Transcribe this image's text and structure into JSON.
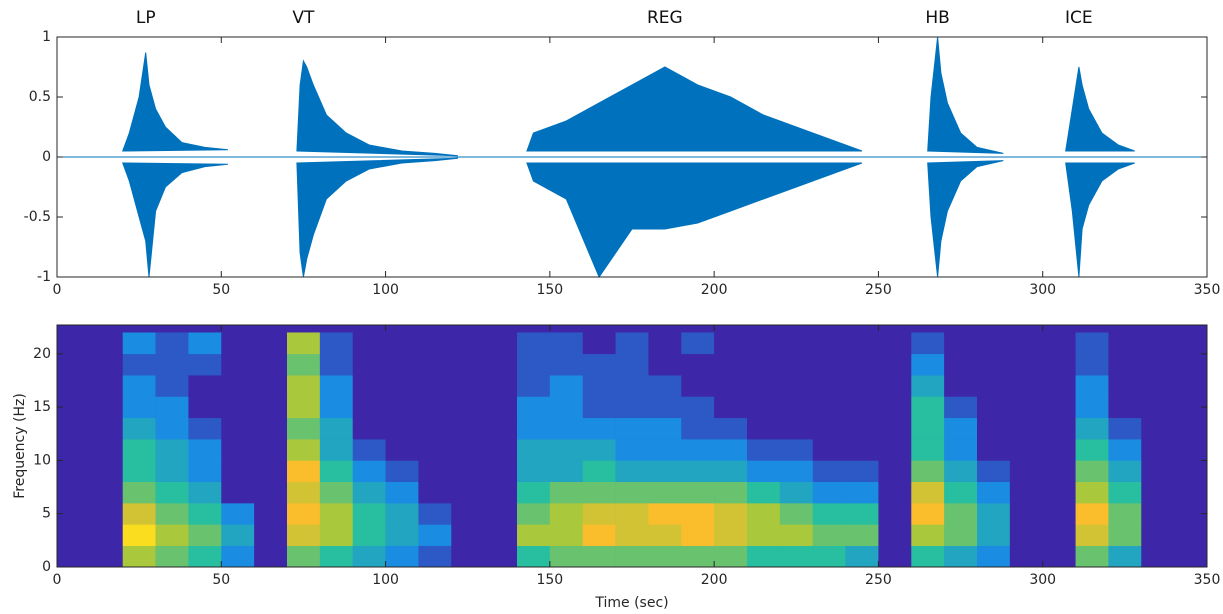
{
  "chart_data": [
    {
      "type": "envelope",
      "color": "#0072bd",
      "xlim": [
        0,
        350
      ],
      "ylim": [
        -1,
        1
      ],
      "xticks": [
        0,
        50,
        100,
        150,
        200,
        250,
        300,
        350
      ],
      "yticks": [
        -1,
        -0.5,
        0,
        0.5,
        1
      ],
      "events": [
        {
          "label": "LP",
          "x": [
            20,
            22,
            25,
            27,
            28,
            30,
            33,
            38,
            45,
            52
          ],
          "upper": [
            0.05,
            0.2,
            0.5,
            0.87,
            0.6,
            0.4,
            0.25,
            0.12,
            0.08,
            0.06
          ],
          "lower": [
            -0.05,
            -0.2,
            -0.5,
            -0.7,
            -1,
            -0.45,
            -0.25,
            -0.13,
            -0.08,
            -0.06
          ]
        },
        {
          "label": "VT",
          "x": [
            73,
            74,
            75,
            76,
            78,
            82,
            88,
            95,
            105,
            115,
            122
          ],
          "upper": [
            0.05,
            0.6,
            0.8,
            0.75,
            0.6,
            0.35,
            0.2,
            0.1,
            0.05,
            0.03,
            0.01
          ],
          "lower": [
            -0.05,
            -0.8,
            -1,
            -0.85,
            -0.65,
            -0.35,
            -0.2,
            -0.1,
            -0.05,
            -0.03,
            -0.01
          ]
        },
        {
          "label": "REG",
          "x": [
            143,
            145,
            155,
            165,
            175,
            185,
            195,
            205,
            215,
            225,
            235,
            245
          ],
          "upper": [
            0.05,
            0.2,
            0.3,
            0.45,
            0.6,
            0.75,
            0.6,
            0.5,
            0.35,
            0.25,
            0.15,
            0.05
          ],
          "lower": [
            -0.05,
            -0.2,
            -0.35,
            -1,
            -0.6,
            -0.6,
            -0.55,
            -0.45,
            -0.35,
            -0.25,
            -0.15,
            -0.05
          ]
        },
        {
          "label": "HB",
          "x": [
            265,
            266,
            268,
            269,
            271,
            275,
            280,
            288
          ],
          "upper": [
            0.05,
            0.5,
            1,
            0.7,
            0.45,
            0.2,
            0.08,
            0.03
          ],
          "lower": [
            -0.05,
            -0.5,
            -1,
            -0.7,
            -0.45,
            -0.2,
            -0.08,
            -0.03
          ]
        },
        {
          "label": "ICE",
          "x": [
            307,
            309,
            311,
            312,
            314,
            318,
            323,
            328
          ],
          "upper": [
            0.05,
            0.4,
            0.75,
            0.6,
            0.4,
            0.2,
            0.1,
            0.05
          ],
          "lower": [
            -0.05,
            -0.45,
            -1,
            -0.6,
            -0.4,
            -0.2,
            -0.1,
            -0.05
          ]
        }
      ]
    },
    {
      "type": "heatmap",
      "x_label": "Time (sec)",
      "y_label": "Frequency (Hz)",
      "xlim": [
        0,
        350
      ],
      "ylim": [
        0,
        22.7
      ],
      "xticks": [
        0,
        50,
        100,
        150,
        200,
        250,
        300,
        350
      ],
      "yticks": [
        0,
        5,
        10,
        15,
        20
      ],
      "colormap": [
        "#3e26a8",
        "#1a8ce1",
        "#28bea0",
        "#aac83c",
        "#fabe2d",
        "#f9fb0e"
      ],
      "xbins": [
        0,
        10,
        20,
        30,
        40,
        50,
        60,
        70,
        80,
        90,
        100,
        110,
        120,
        130,
        140,
        150,
        160,
        170,
        180,
        190,
        200,
        210,
        220,
        230,
        240,
        250,
        260,
        270,
        280,
        290,
        300,
        310,
        320,
        330,
        340,
        350
      ],
      "ybins": [
        0,
        2,
        4,
        6,
        8,
        10,
        12,
        14,
        16,
        18,
        20,
        22
      ],
      "z": [
        [
          0,
          0,
          0.6,
          0.5,
          0.4,
          0.2,
          0,
          0.5,
          0.4,
          0.3,
          0.2,
          0.1,
          0,
          0,
          0.4,
          0.5,
          0.5,
          0.5,
          0.5,
          0.5,
          0.5,
          0.4,
          0.4,
          0.4,
          0.3,
          0,
          0.4,
          0.3,
          0.2,
          0,
          0,
          0.5,
          0.3,
          0,
          0
        ],
        [
          0,
          0,
          0.9,
          0.6,
          0.5,
          0.3,
          0,
          0.7,
          0.6,
          0.4,
          0.3,
          0.2,
          0,
          0,
          0.6,
          0.6,
          0.8,
          0.7,
          0.7,
          0.8,
          0.7,
          0.6,
          0.6,
          0.5,
          0.5,
          0,
          0.6,
          0.5,
          0.3,
          0,
          0,
          0.7,
          0.5,
          0,
          0
        ],
        [
          0,
          0,
          0.7,
          0.5,
          0.4,
          0.2,
          0,
          0.8,
          0.6,
          0.4,
          0.3,
          0.1,
          0,
          0,
          0.5,
          0.6,
          0.7,
          0.7,
          0.8,
          0.8,
          0.7,
          0.6,
          0.5,
          0.4,
          0.4,
          0,
          0.8,
          0.5,
          0.3,
          0,
          0,
          0.8,
          0.5,
          0,
          0
        ],
        [
          0,
          0,
          0.5,
          0.4,
          0.3,
          0,
          0,
          0.7,
          0.5,
          0.3,
          0.2,
          0,
          0,
          0,
          0.4,
          0.5,
          0.5,
          0.5,
          0.5,
          0.5,
          0.5,
          0.4,
          0.3,
          0.2,
          0.2,
          0,
          0.7,
          0.4,
          0.2,
          0,
          0,
          0.6,
          0.4,
          0,
          0
        ],
        [
          0,
          0,
          0.4,
          0.3,
          0.2,
          0,
          0,
          0.8,
          0.4,
          0.2,
          0.1,
          0,
          0,
          0,
          0.3,
          0.3,
          0.4,
          0.3,
          0.3,
          0.3,
          0.3,
          0.2,
          0.2,
          0.1,
          0.1,
          0,
          0.5,
          0.3,
          0.1,
          0,
          0,
          0.5,
          0.3,
          0,
          0
        ],
        [
          0,
          0,
          0.4,
          0.3,
          0.2,
          0,
          0,
          0.6,
          0.3,
          0.1,
          0,
          0,
          0,
          0,
          0.3,
          0.3,
          0.3,
          0.2,
          0.2,
          0.2,
          0.2,
          0.1,
          0.1,
          0,
          0,
          0,
          0.4,
          0.2,
          0,
          0,
          0,
          0.4,
          0.2,
          0,
          0
        ],
        [
          0,
          0,
          0.3,
          0.2,
          0.1,
          0,
          0,
          0.5,
          0.3,
          0,
          0,
          0,
          0,
          0,
          0.2,
          0.2,
          0.2,
          0.2,
          0.2,
          0.1,
          0.1,
          0,
          0,
          0,
          0,
          0,
          0.4,
          0.2,
          0,
          0,
          0,
          0.3,
          0.1,
          0,
          0
        ],
        [
          0,
          0,
          0.2,
          0.2,
          0,
          0,
          0,
          0.6,
          0.2,
          0,
          0,
          0,
          0,
          0,
          0.2,
          0.2,
          0.1,
          0.1,
          0.1,
          0.1,
          0,
          0,
          0,
          0,
          0,
          0,
          0.4,
          0.1,
          0,
          0,
          0,
          0.2,
          0,
          0,
          0
        ],
        [
          0,
          0,
          0.2,
          0.1,
          0,
          0,
          0,
          0.6,
          0.2,
          0,
          0,
          0,
          0,
          0,
          0.1,
          0.2,
          0.1,
          0.1,
          0.1,
          0,
          0,
          0,
          0,
          0,
          0,
          0,
          0.3,
          0,
          0,
          0,
          0,
          0.2,
          0,
          0,
          0
        ],
        [
          0,
          0,
          0.1,
          0.1,
          0.1,
          0,
          0,
          0.5,
          0.1,
          0,
          0,
          0,
          0,
          0,
          0.1,
          0.1,
          0.1,
          0.1,
          0,
          0,
          0,
          0,
          0,
          0,
          0,
          0,
          0.2,
          0,
          0,
          0,
          0,
          0.1,
          0,
          0,
          0
        ],
        [
          0,
          0,
          0.2,
          0.1,
          0.2,
          0,
          0,
          0.6,
          0.1,
          0,
          0,
          0,
          0,
          0,
          0.1,
          0.1,
          0,
          0.1,
          0,
          0.1,
          0,
          0,
          0,
          0,
          0,
          0,
          0.1,
          0,
          0,
          0,
          0,
          0.1,
          0,
          0,
          0
        ]
      ]
    }
  ]
}
